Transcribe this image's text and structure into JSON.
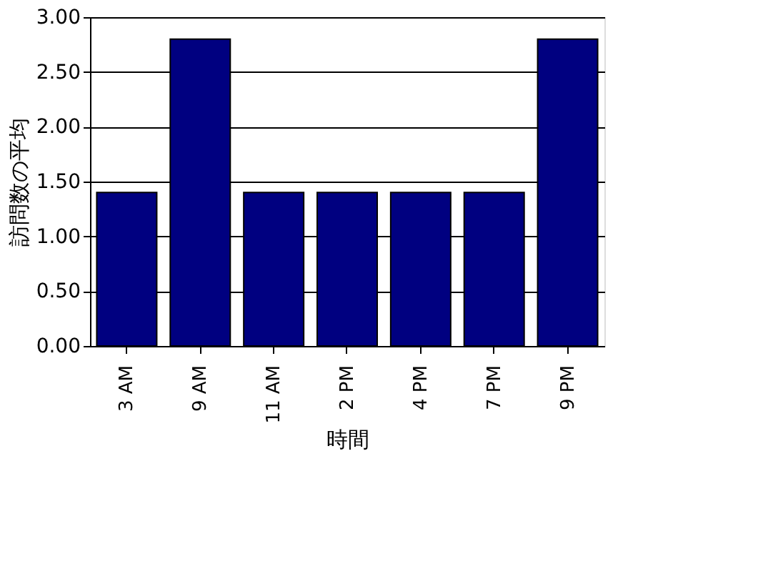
{
  "chart_data": {
    "type": "bar",
    "xlabel": "時間",
    "ylabel": "訪問数の平均",
    "categories": [
      "3 AM",
      "9 AM",
      "11 AM",
      "2 PM",
      "4 PM",
      "7 PM",
      "9 PM"
    ],
    "values": [
      1.4,
      2.8,
      1.4,
      1.4,
      1.4,
      1.4,
      2.8
    ],
    "color": "#000080",
    "ylim": [
      0,
      3
    ],
    "yticks": [
      {
        "value": 0,
        "label": "0.00"
      },
      {
        "value": 0.5,
        "label": "0.50"
      },
      {
        "value": 1,
        "label": "1.00"
      },
      {
        "value": 1.5,
        "label": "1.50"
      },
      {
        "value": 2,
        "label": "2.00"
      },
      {
        "value": 2.5,
        "label": "2.50"
      },
      {
        "value": 3,
        "label": "3.00"
      }
    ],
    "grid": "y"
  }
}
